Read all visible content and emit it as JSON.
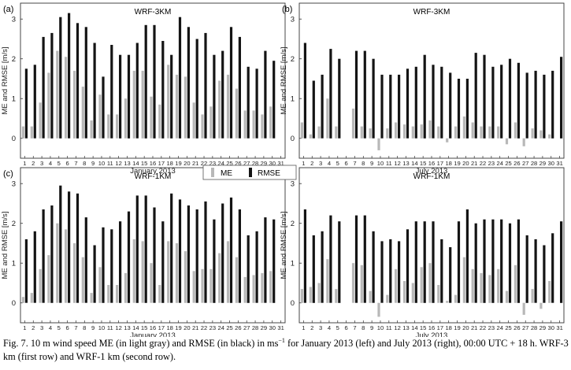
{
  "legend": {
    "me_label": "ME",
    "rmse_label": "RMSE"
  },
  "caption": {
    "text_before_sup": "Fig. 7. 10 m wind speed ME (in light gray) and RMSE (in black) in ms",
    "sup": "−1",
    "text_after_sup": " for January 2013 (left) and July 2013 (right), 00:00 UTC + 18 h. WRF-3 km (first row) and WRF-1 km (second row)."
  },
  "colors": {
    "me": "#b8b8b8",
    "rmse": "#141414"
  },
  "chart_data": [
    {
      "type": "bar",
      "panel": "(a)",
      "title": "WRF-3KM",
      "xlabel": "January 2013",
      "ylabel": "ME and RMSE [m/s]",
      "ylim": [
        -0.5,
        3.4
      ],
      "yticks": [
        0,
        1,
        2,
        3
      ],
      "categories": [
        "1",
        "2",
        "3",
        "4",
        "5",
        "6",
        "7",
        "8",
        "9",
        "10",
        "11",
        "12",
        "13",
        "14",
        "15",
        "16",
        "17",
        "18",
        "19",
        "20",
        "21",
        "22",
        "23",
        "24",
        "25",
        "26",
        "27",
        "28",
        "29",
        "30",
        "31"
      ],
      "series": [
        {
          "name": "ME",
          "values": [
            0.3,
            0.3,
            0.9,
            1.65,
            2.2,
            2.05,
            1.7,
            1.3,
            0.45,
            1.1,
            0.6,
            0.6,
            1.0,
            1.7,
            1.7,
            1.05,
            0.85,
            1.85,
            1.6,
            1.55,
            0.9,
            0.6,
            0.8,
            1.45,
            1.6,
            1.25,
            0.7,
            0.7,
            0.6,
            0.8,
            0
          ]
        },
        {
          "name": "RMSE",
          "values": [
            1.75,
            1.85,
            2.55,
            2.65,
            3.05,
            3.15,
            2.9,
            2.8,
            2.4,
            1.55,
            2.35,
            2.1,
            2.1,
            2.4,
            2.85,
            2.85,
            2.45,
            2.1,
            3.05,
            2.8,
            2.5,
            2.65,
            2.1,
            2.2,
            2.8,
            2.55,
            1.8,
            1.75,
            2.2,
            1.95,
            0
          ]
        }
      ]
    },
    {
      "type": "bar",
      "panel": "(b)",
      "title": "WRF-3KM",
      "xlabel": "July 2013",
      "ylabel": "ME and RMSE [m/s]",
      "ylim": [
        -0.5,
        3.4
      ],
      "yticks": [
        0,
        1,
        2,
        3
      ],
      "categories": [
        "1",
        "2",
        "3",
        "4",
        "5",
        "6",
        "7",
        "8",
        "9",
        "10",
        "11",
        "12",
        "13",
        "14",
        "15",
        "16",
        "17",
        "18",
        "19",
        "20",
        "21",
        "22",
        "23",
        "24",
        "25",
        "26",
        "27",
        "28",
        "29",
        "30",
        "31"
      ],
      "series": [
        {
          "name": "ME",
          "values": [
            0.4,
            0.1,
            0.3,
            1.0,
            0.3,
            0,
            0.75,
            0.3,
            0.25,
            -0.3,
            0.25,
            0.4,
            0.35,
            0.3,
            0.35,
            0.45,
            0.3,
            -0.1,
            0.3,
            0.55,
            0.4,
            0.3,
            0.3,
            0.3,
            -0.15,
            0.4,
            -0.2,
            0.25,
            0.2,
            0.1,
            0
          ]
        },
        {
          "name": "RMSE",
          "values": [
            2.4,
            1.45,
            1.6,
            2.25,
            2.0,
            0,
            2.2,
            2.2,
            2.0,
            1.6,
            1.6,
            1.6,
            1.75,
            1.8,
            2.1,
            1.85,
            1.8,
            1.65,
            1.5,
            1.5,
            2.15,
            2.1,
            1.8,
            1.85,
            2.0,
            1.9,
            1.65,
            1.7,
            1.6,
            1.7,
            2.05
          ]
        }
      ]
    },
    {
      "type": "bar",
      "panel": "(c)",
      "title": "WRF-1KM",
      "xlabel": "January 2013",
      "ylabel": "ME and RMSE [m/s]",
      "ylim": [
        -0.5,
        3.4
      ],
      "yticks": [
        0,
        1,
        2,
        3
      ],
      "categories": [
        "1",
        "2",
        "3",
        "4",
        "5",
        "6",
        "7",
        "8",
        "9",
        "10",
        "11",
        "12",
        "13",
        "14",
        "15",
        "16",
        "17",
        "18",
        "19",
        "20",
        "21",
        "22",
        "23",
        "24",
        "25",
        "26",
        "27",
        "28",
        "29",
        "30",
        "31"
      ],
      "series": [
        {
          "name": "ME",
          "values": [
            0.15,
            0.25,
            0.85,
            1.2,
            2.0,
            1.85,
            1.5,
            1.15,
            0.25,
            0.9,
            0.45,
            0.45,
            0.75,
            1.6,
            1.55,
            1.0,
            0.45,
            1.55,
            1.5,
            1.3,
            0.8,
            0.85,
            0.85,
            1.25,
            1.55,
            1.15,
            0.65,
            0.7,
            0.75,
            0.8,
            0
          ]
        },
        {
          "name": "RMSE",
          "values": [
            1.6,
            1.8,
            2.35,
            2.45,
            2.95,
            2.8,
            2.75,
            2.15,
            1.45,
            1.9,
            1.85,
            2.05,
            2.3,
            2.7,
            2.7,
            2.4,
            2.05,
            2.75,
            2.6,
            2.45,
            2.35,
            2.55,
            2.1,
            2.5,
            2.65,
            2.35,
            1.7,
            1.8,
            2.15,
            2.1,
            0
          ]
        }
      ]
    },
    {
      "type": "bar",
      "panel": "(d)",
      "title": "WRF-1KM",
      "xlabel": "July 2013",
      "ylabel": "ME and RMSE [m/s]",
      "ylim": [
        -0.5,
        3.4
      ],
      "yticks": [
        0,
        1,
        2,
        3
      ],
      "categories": [
        "1",
        "2",
        "3",
        "4",
        "5",
        "6",
        "7",
        "8",
        "9",
        "10",
        "11",
        "12",
        "13",
        "14",
        "15",
        "16",
        "17",
        "18",
        "19",
        "20",
        "21",
        "22",
        "23",
        "24",
        "25",
        "26",
        "27",
        "28",
        "29",
        "30",
        "31"
      ],
      "series": [
        {
          "name": "ME",
          "values": [
            0.35,
            0.4,
            0.5,
            1.1,
            0.35,
            0,
            1.0,
            0.95,
            0.3,
            -0.35,
            0.2,
            0.85,
            0.55,
            0.5,
            0.9,
            1.0,
            0.45,
            0.05,
            0.2,
            1.15,
            0.85,
            0.75,
            0.7,
            0.85,
            0.3,
            0.95,
            -0.3,
            0.35,
            -0.15,
            0.55,
            0
          ]
        },
        {
          "name": "RMSE",
          "values": [
            2.35,
            1.7,
            1.8,
            2.2,
            2.05,
            0,
            2.2,
            2.2,
            1.8,
            1.55,
            1.6,
            1.55,
            1.85,
            2.05,
            2.05,
            2.05,
            1.6,
            1.4,
            2.05,
            2.35,
            2.0,
            2.1,
            2.1,
            2.1,
            2.0,
            2.1,
            1.7,
            1.6,
            1.45,
            1.75,
            2.05
          ]
        }
      ]
    }
  ]
}
